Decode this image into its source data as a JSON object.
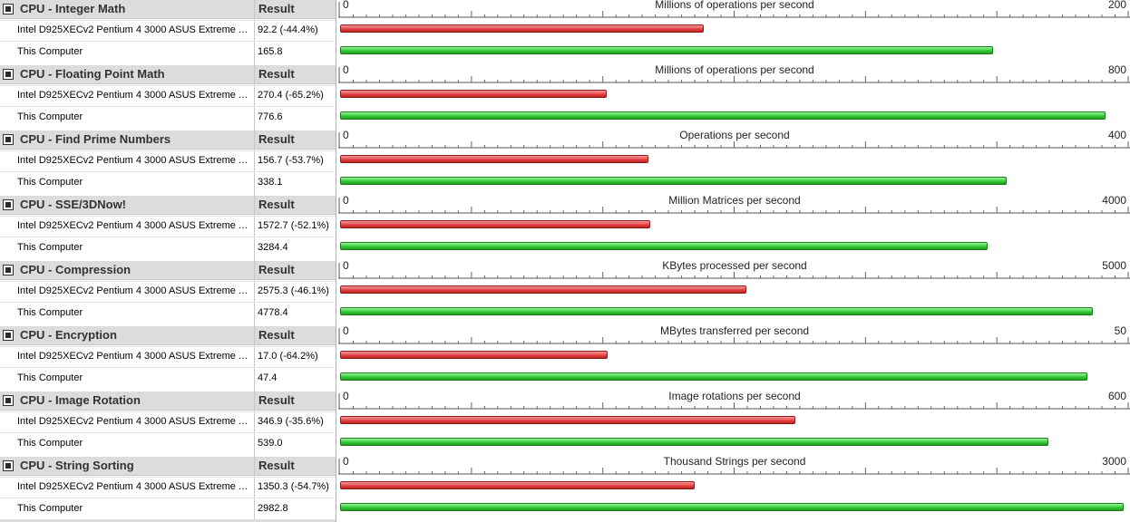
{
  "colors": {
    "reference": "#e64646",
    "this_computer": "#35cc35",
    "header_bg": "#dcdcdc"
  },
  "table": {
    "result_header": "Result"
  },
  "chart_data": [
    {
      "type": "bar",
      "title": "CPU - Integer Math",
      "unit_label": "Millions of operations per second",
      "xlim": [
        0,
        200
      ],
      "tick_min_label": "0",
      "tick_max_label": "200",
      "rows": [
        {
          "name": "Intel D925XECv2 Pentium 4 3000 ASUS Extreme AX..",
          "value": 92.2,
          "display": "92.2 (-44.4%)"
        },
        {
          "name": "This Computer",
          "value": 165.8,
          "display": "165.8"
        }
      ]
    },
    {
      "type": "bar",
      "title": "CPU - Floating Point Math",
      "unit_label": "Millions of operations per second",
      "xlim": [
        0,
        800
      ],
      "tick_min_label": "0",
      "tick_max_label": "800",
      "rows": [
        {
          "name": "Intel D925XECv2 Pentium 4 3000 ASUS Extreme AX..",
          "value": 270.4,
          "display": "270.4 (-65.2%)"
        },
        {
          "name": "This Computer",
          "value": 776.6,
          "display": "776.6"
        }
      ]
    },
    {
      "type": "bar",
      "title": "CPU - Find Prime Numbers",
      "unit_label": "Operations per second",
      "xlim": [
        0,
        400
      ],
      "tick_min_label": "0",
      "tick_max_label": "400",
      "rows": [
        {
          "name": "Intel D925XECv2 Pentium 4 3000 ASUS Extreme AX..",
          "value": 156.7,
          "display": "156.7 (-53.7%)"
        },
        {
          "name": "This Computer",
          "value": 338.1,
          "display": "338.1"
        }
      ]
    },
    {
      "type": "bar",
      "title": "CPU - SSE/3DNow!",
      "unit_label": "Million Matrices per second",
      "xlim": [
        0,
        4000
      ],
      "tick_min_label": "0",
      "tick_max_label": "4000",
      "rows": [
        {
          "name": "Intel D925XECv2 Pentium 4 3000 ASUS Extreme AX..",
          "value": 1572.7,
          "display": "1572.7 (-52.1%)"
        },
        {
          "name": "This Computer",
          "value": 3284.4,
          "display": "3284.4"
        }
      ]
    },
    {
      "type": "bar",
      "title": "CPU - Compression",
      "unit_label": "KBytes processed per second",
      "xlim": [
        0,
        5000
      ],
      "tick_min_label": "0",
      "tick_max_label": "5000",
      "rows": [
        {
          "name": "Intel D925XECv2 Pentium 4 3000 ASUS Extreme AX..",
          "value": 2575.3,
          "display": "2575.3 (-46.1%)"
        },
        {
          "name": "This Computer",
          "value": 4778.4,
          "display": "4778.4"
        }
      ]
    },
    {
      "type": "bar",
      "title": "CPU - Encryption",
      "unit_label": "MBytes transferred per second",
      "xlim": [
        0,
        50
      ],
      "tick_min_label": "0",
      "tick_max_label": "50",
      "rows": [
        {
          "name": "Intel D925XECv2 Pentium 4 3000 ASUS Extreme AX..",
          "value": 17.0,
          "display": "17.0 (-64.2%)"
        },
        {
          "name": "This Computer",
          "value": 47.4,
          "display": "47.4"
        }
      ]
    },
    {
      "type": "bar",
      "title": "CPU - Image Rotation",
      "unit_label": "Image rotations per second",
      "xlim": [
        0,
        600
      ],
      "tick_min_label": "0",
      "tick_max_label": "600",
      "rows": [
        {
          "name": "Intel D925XECv2 Pentium 4 3000 ASUS Extreme AX..",
          "value": 346.9,
          "display": "346.9 (-35.6%)"
        },
        {
          "name": "This Computer",
          "value": 539.0,
          "display": "539.0"
        }
      ]
    },
    {
      "type": "bar",
      "title": "CPU - String Sorting",
      "unit_label": "Thousand Strings per second",
      "xlim": [
        0,
        3000
      ],
      "tick_min_label": "0",
      "tick_max_label": "3000",
      "rows": [
        {
          "name": "Intel D925XECv2 Pentium 4 3000 ASUS Extreme AX..",
          "value": 1350.3,
          "display": "1350.3 (-54.7%)"
        },
        {
          "name": "This Computer",
          "value": 2982.8,
          "display": "2982.8"
        }
      ]
    }
  ]
}
